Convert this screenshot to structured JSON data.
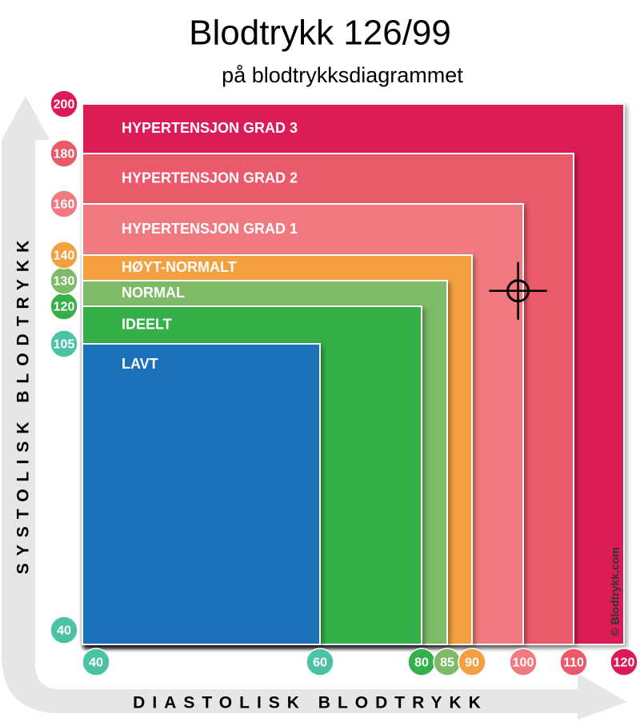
{
  "chart_data": {
    "type": "zones",
    "title": "Blodtrykk 126/99",
    "subtitle": "på blodtrykksdiagrammet",
    "x_label": "DIASTOLISK BLODTRYKK",
    "y_label": "SYSTOLISK BLODTRYKK",
    "credit": "© Blodtrykk.com",
    "xticks": [
      40,
      60,
      80,
      85,
      90,
      100,
      110,
      120
    ],
    "xtick_colors": [
      "#4cc2a4",
      "#4cc2a4",
      "#35b04a",
      "#7dbb68",
      "#f5a040",
      "#f07a80",
      "#ea5a6a",
      "#dc1a55"
    ],
    "yticks": [
      40,
      105,
      120,
      130,
      140,
      160,
      180,
      200
    ],
    "ytick_colors": [
      "#4cc2a4",
      "#4cc2a4",
      "#35b04a",
      "#7dbb68",
      "#f5a040",
      "#f07a80",
      "#ea5a6a",
      "#dc1a55"
    ],
    "zones": [
      {
        "name": "HYPERTENSJON GRAD 3",
        "systolic": 200,
        "diastolic": 120,
        "color": "#dc1a55"
      },
      {
        "name": "HYPERTENSJON GRAD 2",
        "systolic": 180,
        "diastolic": 110,
        "color": "#ea5a6a"
      },
      {
        "name": "HYPERTENSJON GRAD 1",
        "systolic": 160,
        "diastolic": 100,
        "color": "#f07a80"
      },
      {
        "name": "HØYT-NORMALT",
        "systolic": 140,
        "diastolic": 90,
        "color": "#f5a040"
      },
      {
        "name": "NORMAL",
        "systolic": 130,
        "diastolic": 85,
        "color": "#7dbb68"
      },
      {
        "name": "IDEELT",
        "systolic": 120,
        "diastolic": 80,
        "color": "#35b04a"
      },
      {
        "name": "LAVT",
        "systolic": 105,
        "diastolic": 60,
        "color": "#1c72b8"
      }
    ],
    "point": {
      "x": 99,
      "y": 126
    }
  }
}
